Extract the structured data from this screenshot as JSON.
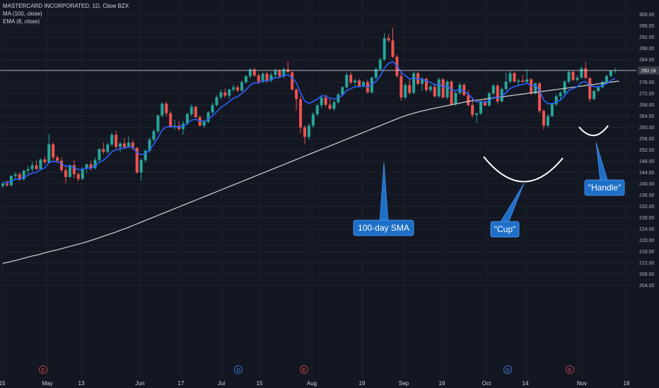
{
  "header": {
    "title": "MASTERCARD INCORPORATED, 1D, Cboe BZX",
    "ma_label": "MA (100, close)",
    "ema_label": "EMA (8, close)"
  },
  "price_tag": "280.16",
  "annotations": {
    "sma": "100-day SMA",
    "cup": "\"Cup\"",
    "handle": "\"Handle\""
  },
  "colors": {
    "background": "#131722",
    "up": "#26a69a",
    "down": "#ef5350",
    "ema": "#2962ff",
    "sma": "#c8c8c8",
    "callout": "#1e6fc7"
  },
  "chart_data": {
    "type": "candlestick",
    "title": "MASTERCARD INCORPORATED, 1D, Cboe BZX",
    "ylim": [
      204,
      300
    ],
    "y_ticks": [
      "300.00",
      "296.00",
      "292.00",
      "288.00",
      "284.00",
      "280.00",
      "276.00",
      "272.00",
      "268.00",
      "264.00",
      "260.00",
      "256.00",
      "252.00",
      "248.00",
      "244.00",
      "240.00",
      "236.00",
      "232.00",
      "228.00",
      "224.00",
      "220.00",
      "216.00",
      "212.00",
      "208.00",
      "204.00"
    ],
    "x_ticks": [
      "15",
      "May",
      "13",
      "Jun",
      "17",
      "Jul",
      "15",
      "Aug",
      "19",
      "Sep",
      "16",
      "Oct",
      "14",
      "Nov",
      "18"
    ],
    "event_markers": [
      "E",
      "D",
      "E",
      "D",
      "E"
    ],
    "horizontal_level": 280.16,
    "candles": [
      [
        239.2,
        240.3,
        238.6,
        240.1
      ],
      [
        240.1,
        241.2,
        239.0,
        239.5
      ],
      [
        239.5,
        243.0,
        239.0,
        242.8
      ],
      [
        242.8,
        244.0,
        241.6,
        243.4
      ],
      [
        243.4,
        244.1,
        240.8,
        241.6
      ],
      [
        241.6,
        245.0,
        241.0,
        244.6
      ],
      [
        244.6,
        246.3,
        243.4,
        245.2
      ],
      [
        245.2,
        247.8,
        244.2,
        246.5
      ],
      [
        246.5,
        248.2,
        244.8,
        245.2
      ],
      [
        245.2,
        249.0,
        244.6,
        248.6
      ],
      [
        248.6,
        249.6,
        247.0,
        247.6
      ],
      [
        247.6,
        257.6,
        247.2,
        254.0
      ],
      [
        254.0,
        254.6,
        248.0,
        249.3
      ],
      [
        249.3,
        250.0,
        247.2,
        248.2
      ],
      [
        248.2,
        249.4,
        244.0,
        244.8
      ],
      [
        244.8,
        246.2,
        240.2,
        242.4
      ],
      [
        242.4,
        247.0,
        242.0,
        246.6
      ],
      [
        246.6,
        248.4,
        242.0,
        243.4
      ],
      [
        243.4,
        244.0,
        240.8,
        241.7
      ],
      [
        241.7,
        245.8,
        241.3,
        245.4
      ],
      [
        245.4,
        247.2,
        243.8,
        246.9
      ],
      [
        246.9,
        248.2,
        244.6,
        245.6
      ],
      [
        245.6,
        249.2,
        245.0,
        248.4
      ],
      [
        248.4,
        252.6,
        247.8,
        252.3
      ],
      [
        252.3,
        254.6,
        250.4,
        251.3
      ],
      [
        251.3,
        254.6,
        250.6,
        253.9
      ],
      [
        253.9,
        258.2,
        253.2,
        257.4
      ],
      [
        257.4,
        258.8,
        252.4,
        253.0
      ],
      [
        253.0,
        255.0,
        251.0,
        254.3
      ],
      [
        254.3,
        256.2,
        252.4,
        253.0
      ],
      [
        253.0,
        256.8,
        252.6,
        254.6
      ],
      [
        254.6,
        255.6,
        252.0,
        252.7
      ],
      [
        252.7,
        253.0,
        243.6,
        244.0
      ],
      [
        244.0,
        249.0,
        241.0,
        248.4
      ],
      [
        248.4,
        252.2,
        247.6,
        251.7
      ],
      [
        251.7,
        256.4,
        251.0,
        255.6
      ],
      [
        255.6,
        259.4,
        254.8,
        258.6
      ],
      [
        258.6,
        264.6,
        258.0,
        264.2
      ],
      [
        264.2,
        268.8,
        263.4,
        268.4
      ],
      [
        268.4,
        269.2,
        263.8,
        265.0
      ],
      [
        265.0,
        265.8,
        259.8,
        260.4
      ],
      [
        260.4,
        262.6,
        259.2,
        260.6
      ],
      [
        260.6,
        262.2,
        258.6,
        259.4
      ],
      [
        259.4,
        262.2,
        257.4,
        261.3
      ],
      [
        261.3,
        265.2,
        260.8,
        264.7
      ],
      [
        264.7,
        268.2,
        263.8,
        267.3
      ],
      [
        267.3,
        267.6,
        263.2,
        263.6
      ],
      [
        263.6,
        264.2,
        260.2,
        260.6
      ],
      [
        260.6,
        262.4,
        259.8,
        262.0
      ],
      [
        262.0,
        265.8,
        261.4,
        265.3
      ],
      [
        265.3,
        268.6,
        264.6,
        267.9
      ],
      [
        267.9,
        271.4,
        267.4,
        270.7
      ],
      [
        270.7,
        273.4,
        270.0,
        272.4
      ],
      [
        272.4,
        273.8,
        270.4,
        271.2
      ],
      [
        271.2,
        273.8,
        270.2,
        273.4
      ],
      [
        273.4,
        275.2,
        272.6,
        274.2
      ],
      [
        274.2,
        275.0,
        272.6,
        273.0
      ],
      [
        273.0,
        276.6,
        272.6,
        276.0
      ],
      [
        276.0,
        278.6,
        275.4,
        278.1
      ],
      [
        278.1,
        281.0,
        277.4,
        280.5
      ],
      [
        280.5,
        281.2,
        277.8,
        278.4
      ],
      [
        278.4,
        279.2,
        275.4,
        276.2
      ],
      [
        276.2,
        279.6,
        275.6,
        279.0
      ],
      [
        279.0,
        279.6,
        275.8,
        276.6
      ],
      [
        276.6,
        279.4,
        276.0,
        278.6
      ],
      [
        278.6,
        280.8,
        277.6,
        280.1
      ],
      [
        280.1,
        280.6,
        277.4,
        278.1
      ],
      [
        278.1,
        281.2,
        277.4,
        280.6
      ],
      [
        280.6,
        283.4,
        279.8,
        279.5
      ],
      [
        279.5,
        279.8,
        273.0,
        273.4
      ],
      [
        273.4,
        273.8,
        266.0,
        270.0
      ],
      [
        270.0,
        271.2,
        257.8,
        260.0
      ],
      [
        260.0,
        260.8,
        254.0,
        256.6
      ],
      [
        256.6,
        261.4,
        255.6,
        260.6
      ],
      [
        260.6,
        265.4,
        259.8,
        264.6
      ],
      [
        264.6,
        268.4,
        264.0,
        267.8
      ],
      [
        267.8,
        271.4,
        266.8,
        270.5
      ],
      [
        270.5,
        271.6,
        267.2,
        268.0
      ],
      [
        268.0,
        270.4,
        266.2,
        266.6
      ],
      [
        266.6,
        269.6,
        265.8,
        268.9
      ],
      [
        268.9,
        272.2,
        268.4,
        271.6
      ],
      [
        271.6,
        274.6,
        271.0,
        274.2
      ],
      [
        274.2,
        279.4,
        273.8,
        278.6
      ],
      [
        278.6,
        279.6,
        275.2,
        275.9
      ],
      [
        275.9,
        277.4,
        274.6,
        276.6
      ],
      [
        276.6,
        277.2,
        274.2,
        274.6
      ],
      [
        274.6,
        276.6,
        274.0,
        276.0
      ],
      [
        276.0,
        277.0,
        272.0,
        272.4
      ],
      [
        272.4,
        278.0,
        272.0,
        277.6
      ],
      [
        277.6,
        281.2,
        277.0,
        280.6
      ],
      [
        280.6,
        284.6,
        280.0,
        284.0
      ],
      [
        284.0,
        293.4,
        283.6,
        291.6
      ],
      [
        291.6,
        293.0,
        290.2,
        290.8
      ],
      [
        290.8,
        295.2,
        284.6,
        285.0
      ],
      [
        285.0,
        285.8,
        277.6,
        278.2
      ],
      [
        278.2,
        279.6,
        269.4,
        270.6
      ],
      [
        270.6,
        275.6,
        270.0,
        275.0
      ],
      [
        275.0,
        277.0,
        271.6,
        272.2
      ],
      [
        272.2,
        279.8,
        271.8,
        279.2
      ],
      [
        279.2,
        279.6,
        275.0,
        275.4
      ],
      [
        275.4,
        277.8,
        272.8,
        277.2
      ],
      [
        277.2,
        277.6,
        272.6,
        273.2
      ],
      [
        273.2,
        275.2,
        272.4,
        274.4
      ],
      [
        274.4,
        275.6,
        270.6,
        271.0
      ],
      [
        271.0,
        277.6,
        270.4,
        277.0
      ],
      [
        277.0,
        277.4,
        270.2,
        270.6
      ],
      [
        270.6,
        276.8,
        270.0,
        276.2
      ],
      [
        276.2,
        276.6,
        267.6,
        268.2
      ],
      [
        268.2,
        272.8,
        267.6,
        272.2
      ],
      [
        272.2,
        275.8,
        271.6,
        275.1
      ],
      [
        275.1,
        275.6,
        271.0,
        271.4
      ],
      [
        271.4,
        273.2,
        267.4,
        267.9
      ],
      [
        267.9,
        270.6,
        263.4,
        264.4
      ],
      [
        264.4,
        265.2,
        261.6,
        264.9
      ],
      [
        264.9,
        269.8,
        264.4,
        269.2
      ],
      [
        269.2,
        270.4,
        267.6,
        267.7
      ],
      [
        267.7,
        272.6,
        267.2,
        272.0
      ],
      [
        272.0,
        275.4,
        271.4,
        274.8
      ],
      [
        274.8,
        275.4,
        268.4,
        269.2
      ],
      [
        269.2,
        274.2,
        268.8,
        273.6
      ],
      [
        273.6,
        279.4,
        273.0,
        276.2
      ],
      [
        276.2,
        280.2,
        275.6,
        279.2
      ],
      [
        279.2,
        279.6,
        276.0,
        276.2
      ],
      [
        276.2,
        277.2,
        274.6,
        276.6
      ],
      [
        276.6,
        278.6,
        276.0,
        276.1
      ],
      [
        276.1,
        280.6,
        275.6,
        277.0
      ],
      [
        277.0,
        277.4,
        271.4,
        272.0
      ],
      [
        272.0,
        275.8,
        271.6,
        275.6
      ],
      [
        275.6,
        276.0,
        265.0,
        265.8
      ],
      [
        265.8,
        266.4,
        259.2,
        260.6
      ],
      [
        260.6,
        264.8,
        260.0,
        264.0
      ],
      [
        264.0,
        268.8,
        263.6,
        268.2
      ],
      [
        268.2,
        271.6,
        267.6,
        271.0
      ],
      [
        271.0,
        272.8,
        269.4,
        272.2
      ],
      [
        272.2,
        276.8,
        271.6,
        276.2
      ],
      [
        276.2,
        280.4,
        275.6,
        279.6
      ],
      [
        279.6,
        280.2,
        276.4,
        276.8
      ],
      [
        276.8,
        278.4,
        276.2,
        277.6
      ],
      [
        277.6,
        281.4,
        277.2,
        280.9
      ],
      [
        280.9,
        283.2,
        277.8,
        277.4
      ],
      [
        277.4,
        277.8,
        269.0,
        270.0
      ],
      [
        270.0,
        273.4,
        269.6,
        272.9
      ],
      [
        272.9,
        274.6,
        272.4,
        274.2
      ],
      [
        274.2,
        276.6,
        273.8,
        276.1
      ],
      [
        276.1,
        278.6,
        275.6,
        278.2
      ],
      [
        278.2,
        280.4,
        277.8,
        280.0
      ],
      [
        280.0,
        281.2,
        279.0,
        280.2
      ]
    ],
    "series": [
      {
        "name": "EMA (8, close)",
        "values": [
          240.6,
          240.4,
          240.9,
          241.6,
          241.6,
          242.3,
          243.0,
          243.8,
          244.0,
          245.1,
          245.6,
          247.5,
          247.9,
          247.9,
          247.2,
          246.2,
          246.3,
          245.8,
          245.0,
          245.1,
          245.5,
          245.5,
          246.2,
          247.6,
          248.4,
          249.6,
          251.4,
          252.0,
          252.5,
          252.6,
          253.1,
          253.0,
          250.9,
          250.3,
          250.7,
          252.0,
          254.0,
          256.3,
          259.0,
          260.2,
          260.2,
          260.3,
          260.1,
          260.4,
          261.4,
          262.6,
          262.8,
          262.3,
          262.2,
          262.9,
          264.0,
          265.5,
          267.1,
          268.0,
          269.2,
          270.3,
          270.9,
          272.0,
          273.3,
          275.0,
          275.7,
          275.8,
          276.5,
          276.5,
          276.9,
          277.6,
          277.7,
          278.4,
          278.6,
          277.5,
          275.8,
          272.3,
          269.3,
          268.5,
          269.1,
          270.0,
          271.2,
          271.1,
          270.3,
          270.1,
          270.4,
          271.3,
          273.1,
          273.7,
          274.4,
          274.4,
          274.8,
          274.3,
          275.1,
          276.3,
          278.1,
          281.0,
          282.7,
          283.2,
          281.9,
          279.4,
          278.4,
          277.1,
          277.6,
          277.1,
          277.1,
          276.4,
          276.0,
          274.9,
          275.4,
          274.3,
          274.7,
          273.2,
          273.0,
          273.5,
          272.9,
          271.8,
          270.2,
          269.0,
          269.1,
          268.8,
          269.5,
          270.7,
          270.4,
          271.1,
          272.2,
          273.8,
          274.4,
          274.9,
          275.2,
          275.6,
          274.8,
          275.0,
          273.0,
          269.6,
          268.4,
          268.4,
          269.0,
          269.7,
          271.2,
          273.1,
          273.7,
          274.4,
          275.9,
          276.2,
          274.8,
          274.4,
          274.4,
          274.8,
          275.5,
          276.6,
          277.4
        ]
      },
      {
        "name": "MA (100, close)",
        "values": [
          211.8,
          212.1,
          212.5,
          212.8,
          213.2,
          213.6,
          214.0,
          214.4,
          214.7,
          215.1,
          215.5,
          215.9,
          216.3,
          216.6,
          217.0,
          217.4,
          217.8,
          218.2,
          218.6,
          219.0,
          219.4,
          219.9,
          220.4,
          220.9,
          221.4,
          221.9,
          222.4,
          222.9,
          223.5,
          224.0,
          224.6,
          225.2,
          225.8,
          226.4,
          227.0,
          227.6,
          228.2,
          228.8,
          229.4,
          230.0,
          230.6,
          231.2,
          231.8,
          232.4,
          233.0,
          233.6,
          234.2,
          234.8,
          235.4,
          236.0,
          236.6,
          237.2,
          237.8,
          238.4,
          239.0,
          239.6,
          240.2,
          240.8,
          241.4,
          242.0,
          242.6,
          243.2,
          243.8,
          244.4,
          245.0,
          245.6,
          246.2,
          246.8,
          247.4,
          248.0,
          248.6,
          249.2,
          249.8,
          250.4,
          251.0,
          251.6,
          252.2,
          252.8,
          253.4,
          254.0,
          254.6,
          255.2,
          255.8,
          256.4,
          257.0,
          257.6,
          258.2,
          258.8,
          259.4,
          260.0,
          260.6,
          261.2,
          261.8,
          262.4,
          263.0,
          263.6,
          264.1,
          264.6,
          265.0,
          265.4,
          265.8,
          266.1,
          266.5,
          266.8,
          267.1,
          267.4,
          267.7,
          268.0,
          268.3,
          268.6,
          268.9,
          269.2,
          269.4,
          269.6,
          269.8,
          270.0,
          270.2,
          270.4,
          270.6,
          270.8,
          271.0,
          271.2,
          271.4,
          271.6,
          271.8,
          272.0,
          272.2,
          272.4,
          272.6,
          272.8,
          273.0,
          273.2,
          273.4,
          273.6,
          273.8,
          274.0,
          274.2,
          274.4,
          274.6,
          274.8,
          275.0,
          275.2,
          275.4,
          275.6,
          275.8,
          276.0,
          276.2,
          276.4
        ]
      }
    ]
  }
}
